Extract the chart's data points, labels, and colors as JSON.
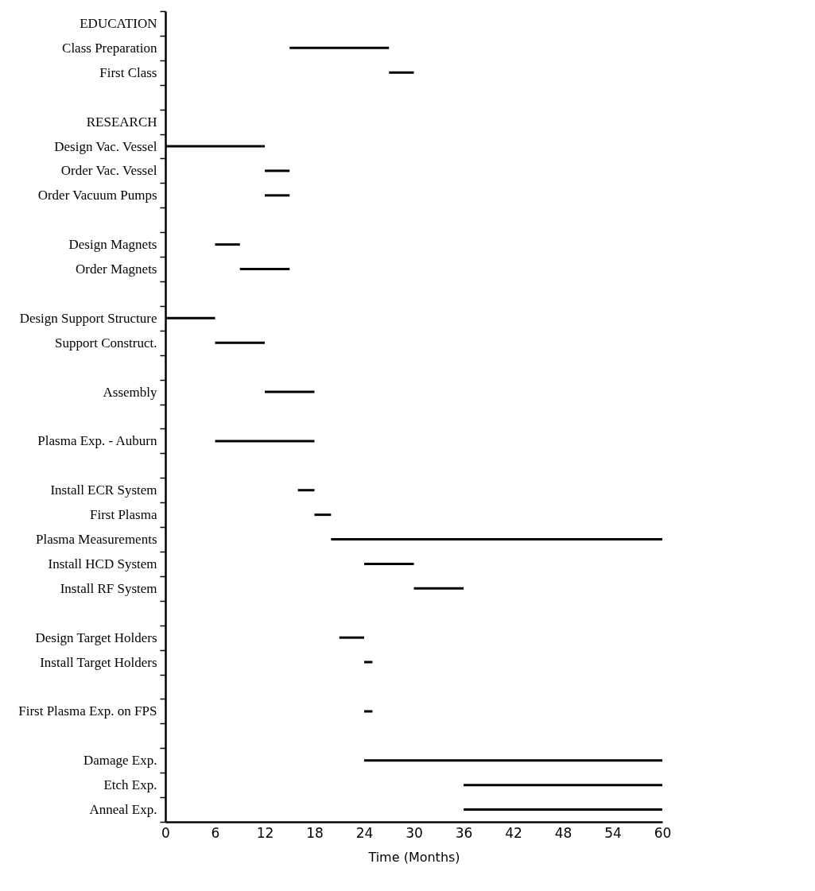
{
  "chart_data": {
    "type": "bar",
    "orientation": "horizontal",
    "xlabel": "Time (Months)",
    "categories": [
      "EDUCATION",
      "Class Preparation",
      "First  Class",
      null,
      "RESEARCH",
      "Design Vac. Vessel",
      "Order Vac. Vessel",
      "Order Vacuum Pumps",
      null,
      "Design Magnets",
      "Order Magnets",
      null,
      "Design Support Structure",
      "Support Construct.",
      null,
      "Assembly",
      null,
      "Plasma Exp. - Auburn",
      null,
      "Install ECR System",
      "First  Plasma",
      "Plasma Measurements",
      "Install HCD System",
      "Install RF System",
      null,
      "Design Target Holders",
      "Install Target Holders",
      null,
      "First  Plasma  Exp.  on  FPS",
      null,
      "Damage Exp.",
      "Etch Exp.",
      "Anneal Exp."
    ],
    "base": [
      null,
      15,
      27,
      null,
      null,
      0,
      12,
      12,
      null,
      6,
      9,
      null,
      0,
      6,
      null,
      12,
      null,
      6,
      null,
      16,
      18,
      20,
      24,
      30,
      null,
      21,
      24,
      null,
      24,
      null,
      24,
      36,
      36
    ],
    "values": [
      null,
      12,
      3,
      null,
      null,
      12,
      3,
      3,
      null,
      3,
      6,
      null,
      6,
      6,
      null,
      6,
      null,
      12,
      null,
      2,
      2,
      40,
      6,
      6,
      null,
      3,
      1,
      null,
      1,
      null,
      36,
      24,
      24
    ],
    "color": "#000000",
    "xlim": [
      0,
      60
    ],
    "xticks": [
      0,
      6,
      12,
      18,
      24,
      30,
      36,
      42,
      48,
      54,
      60
    ],
    "grid": false
  }
}
